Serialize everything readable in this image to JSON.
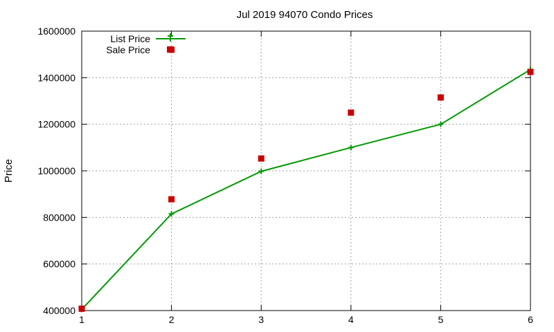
{
  "chart_data": {
    "type": "line",
    "title": "Jul 2019 94070 Condo Prices",
    "xlabel": "",
    "ylabel": "Price",
    "x": [
      1,
      2,
      3,
      4,
      5,
      6
    ],
    "xlim": [
      1,
      6
    ],
    "ylim": [
      400000,
      1600000
    ],
    "xticks": [
      "1",
      "2",
      "3",
      "4",
      "5",
      "6"
    ],
    "yticks": [
      "400000",
      "600000",
      "800000",
      "1000000",
      "1200000",
      "1400000",
      "1600000"
    ],
    "grid": true,
    "legend_position": "top-left",
    "series": [
      {
        "name": "List Price",
        "style": "line-with-plus-markers",
        "color": "#009900",
        "values": [
          405000,
          815000,
          998000,
          1100000,
          1200000,
          1435000
        ]
      },
      {
        "name": "Sale Price",
        "style": "square-points",
        "color": "#cc0000",
        "values": [
          408000,
          878000,
          1053000,
          1250000,
          1315000,
          1425000
        ],
        "extra_points": [
          {
            "x": 2,
            "y": 1520000
          }
        ]
      }
    ]
  }
}
